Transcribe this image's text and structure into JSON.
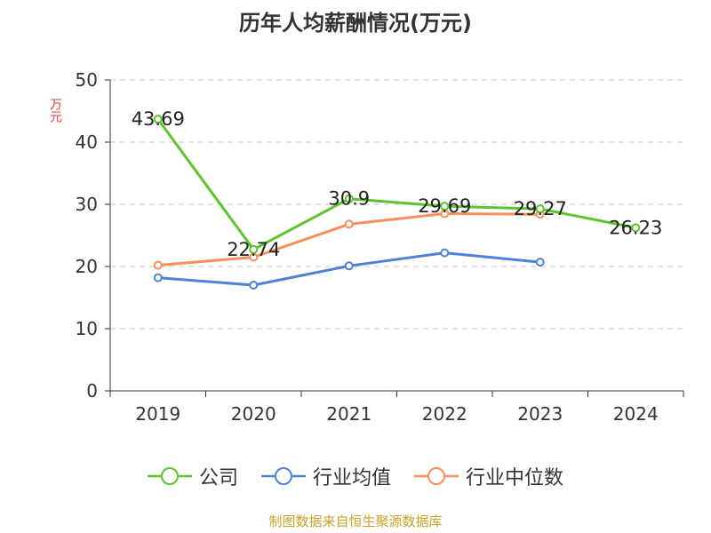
{
  "title": "历年人均薪酬情况(万元)",
  "source": "制图数据来自恒生聚源数据库",
  "chart_data": {
    "type": "line",
    "title": "历年人均薪酬情况(万元)",
    "xlabel": "",
    "ylabel": "万元",
    "categories": [
      "2019",
      "2020",
      "2021",
      "2022",
      "2023",
      "2024"
    ],
    "ylim": [
      0,
      50
    ],
    "yticks": [
      0,
      10,
      20,
      30,
      40,
      50
    ],
    "grid": true,
    "legend_position": "bottom",
    "series": [
      {
        "name": "公司",
        "color": "#5cc52b",
        "values": [
          43.69,
          22.74,
          30.9,
          29.69,
          29.27,
          26.23
        ],
        "show_labels": true
      },
      {
        "name": "行业均值",
        "color": "#4f81d8",
        "values": [
          18.2,
          17.0,
          20.1,
          22.2,
          20.7,
          null
        ],
        "show_labels": false
      },
      {
        "name": "行业中位数",
        "color": "#f68f5a",
        "values": [
          20.2,
          21.5,
          26.8,
          28.5,
          28.4,
          null
        ],
        "show_labels": false
      }
    ]
  }
}
